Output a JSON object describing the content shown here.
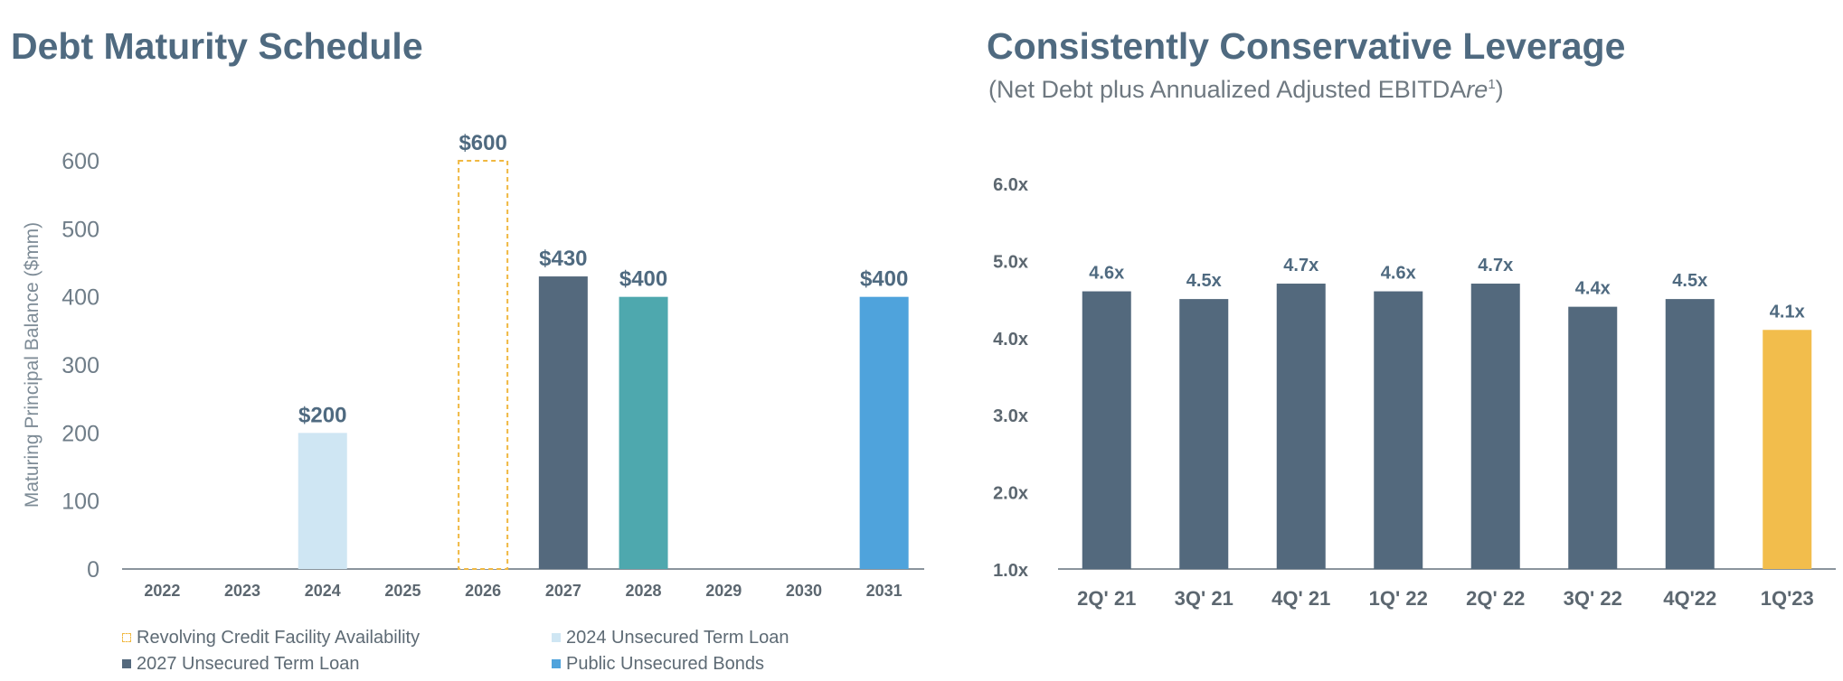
{
  "colors": {
    "title": "#4f6a80",
    "axis": "#7f8c96",
    "revolver_outline": "#f0b840",
    "term_2024": "#cfe6f3",
    "term_2027": "#54697d",
    "bar_2028": "#4ea8ae",
    "bonds": "#4fa3dc",
    "leverage_bar": "#53697d",
    "leverage_highlight": "#f2bd4c"
  },
  "left": {
    "title": "Debt Maturity Schedule",
    "legend": [
      {
        "label": "Revolving Credit Facility Availability",
        "color": "#f0b840",
        "style": "dashed"
      },
      {
        "label": "2024 Unsecured Term Loan",
        "color": "#cfe6f3",
        "style": "solid"
      },
      {
        "label": "2027 Unsecured Term Loan",
        "color": "#54697d",
        "style": "solid"
      },
      {
        "label": "Public Unsecured Bonds",
        "color": "#4fa3dc",
        "style": "solid"
      }
    ]
  },
  "right": {
    "title": "Consistently Conservative Leverage",
    "subtitle_main": "(Net Debt plus Annualized Adjusted EBITDA",
    "subtitle_italic": "re",
    "subtitle_sup": "1",
    "subtitle_end": ")"
  },
  "chart_data": [
    {
      "type": "bar",
      "title": "Debt Maturity Schedule",
      "ylabel": "Maturing Principal Balance ($mm)",
      "ylim": [
        0,
        600
      ],
      "yticks": [
        "0",
        "100",
        "200",
        "300",
        "400",
        "500",
        "600"
      ],
      "categories": [
        "2022",
        "2023",
        "2024",
        "2025",
        "2026",
        "2027",
        "2028",
        "2029",
        "2030",
        "2031"
      ],
      "bars": [
        {
          "category": "2024",
          "value": 200,
          "label": "$200",
          "color": "#cfe6f3",
          "style": "solid"
        },
        {
          "category": "2026",
          "value": 600,
          "label": "$600",
          "color": "#f0b840",
          "style": "dashed"
        },
        {
          "category": "2027",
          "value": 430,
          "label": "$430",
          "color": "#54697d",
          "style": "solid"
        },
        {
          "category": "2028",
          "value": 400,
          "label": "$400",
          "color": "#4ea8ae",
          "style": "solid"
        },
        {
          "category": "2031",
          "value": 400,
          "label": "$400",
          "color": "#4fa3dc",
          "style": "solid"
        }
      ],
      "grid": false
    },
    {
      "type": "bar",
      "title": "Consistently Conservative Leverage",
      "ylim": [
        1.0,
        6.0
      ],
      "yticks": [
        "1.0x",
        "2.0x",
        "3.0x",
        "4.0x",
        "5.0x",
        "6.0x"
      ],
      "categories": [
        "2Q' 21",
        "3Q' 21",
        "4Q' 21",
        "1Q' 22",
        "2Q' 22",
        "3Q' 22",
        "4Q'22",
        "1Q'23"
      ],
      "values": [
        4.6,
        4.5,
        4.7,
        4.6,
        4.7,
        4.4,
        4.5,
        4.1
      ],
      "labels": [
        "4.6x",
        "4.5x",
        "4.7x",
        "4.6x",
        "4.7x",
        "4.4x",
        "4.5x",
        "4.1x"
      ],
      "highlight_index": 7,
      "grid": false
    }
  ]
}
